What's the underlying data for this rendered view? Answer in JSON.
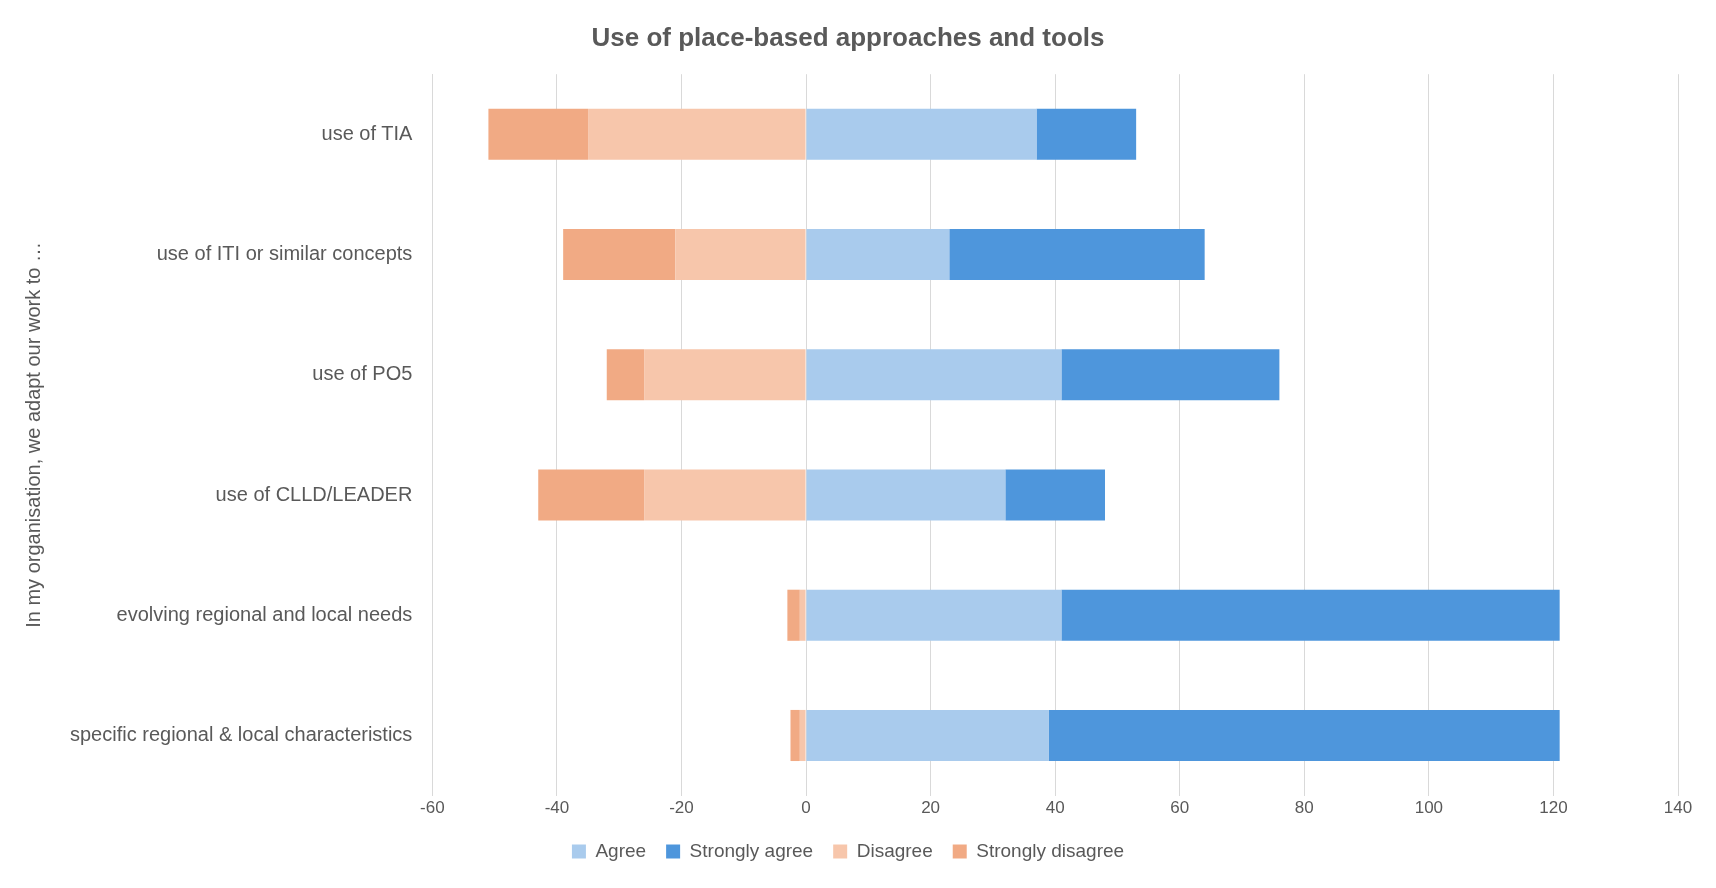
{
  "chart_data": {
    "type": "bar",
    "orientation": "horizontal",
    "stacked": true,
    "title": "Use of place-based approaches and tools",
    "ylabel": "In my organisation, we adapt our work to …",
    "categories": [
      "use of TIA",
      "use of ITI or similar concepts",
      "use of PO5",
      "use of CLLD/LEADER",
      "evolving regional and local needs",
      "specific regional & local characteristics"
    ],
    "series": [
      {
        "name": "Agree",
        "color": "#a9cbed",
        "values": [
          37,
          23,
          41,
          32,
          41,
          39
        ]
      },
      {
        "name": "Strongly agree",
        "color": "#4e96dc",
        "values": [
          16,
          41,
          35,
          16,
          80,
          82
        ]
      },
      {
        "name": "Disagree",
        "color": "#f7c6ab",
        "values": [
          -35,
          -21,
          -26,
          -26,
          -1,
          -1
        ]
      },
      {
        "name": "Strongly disagree",
        "color": "#f1aa84",
        "values": [
          -16,
          -18,
          -6,
          -17,
          -2,
          -1.5
        ]
      }
    ],
    "xlim": [
      -60,
      140
    ],
    "xticks": [
      -60,
      -40,
      -20,
      0,
      20,
      40,
      60,
      80,
      100,
      120,
      140
    ],
    "grid": "x",
    "legend": "bottom"
  }
}
